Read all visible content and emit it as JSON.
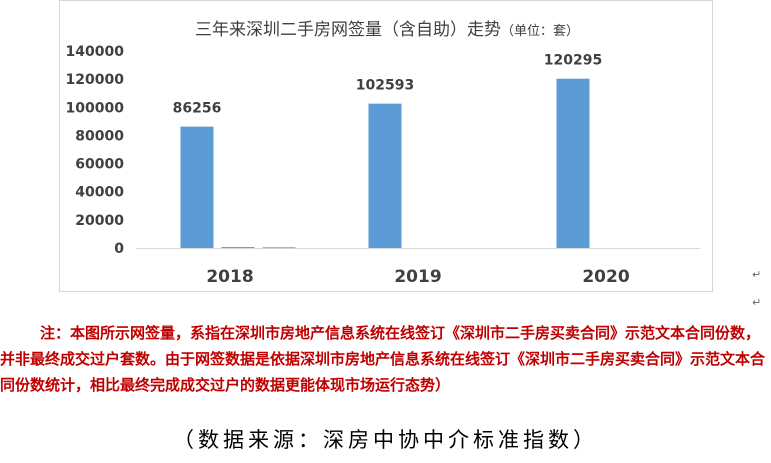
{
  "chart_data": {
    "type": "bar",
    "title": "三年来深圳二手房网签量（含自助）走势",
    "title_unit": "（单位：套）",
    "categories": [
      "2018",
      "2019",
      "2020"
    ],
    "series": [
      {
        "values": [
          86256,
          102593,
          120295
        ],
        "color": "#5b9bd5"
      },
      {
        "values": [
          700,
          0,
          0
        ],
        "color": "#ed7d31"
      },
      {
        "values": [
          600,
          0,
          0
        ],
        "color": "#a5a5a5"
      }
    ],
    "data_labels": [
      "86256",
      "102593",
      "120295"
    ],
    "ylim": [
      0,
      140000
    ],
    "yticks": [
      0,
      20000,
      40000,
      60000,
      80000,
      100000,
      120000,
      140000
    ],
    "grid": false,
    "legend": "none"
  },
  "note": "注：本图所示网签量，系指在深圳市房地产信息系统在线签订《深圳市二手房买卖合同》示范文本合同份数，并非最终成交过户套数。由于网签数据是依据深圳市房地产信息系统在线签订《深圳市二手房买卖合同》示范文本合同份数统计，相比最终完成成交过户的数据更能体现市场运行态势）",
  "source": "（数据来源：深房中协中介标准指数）"
}
